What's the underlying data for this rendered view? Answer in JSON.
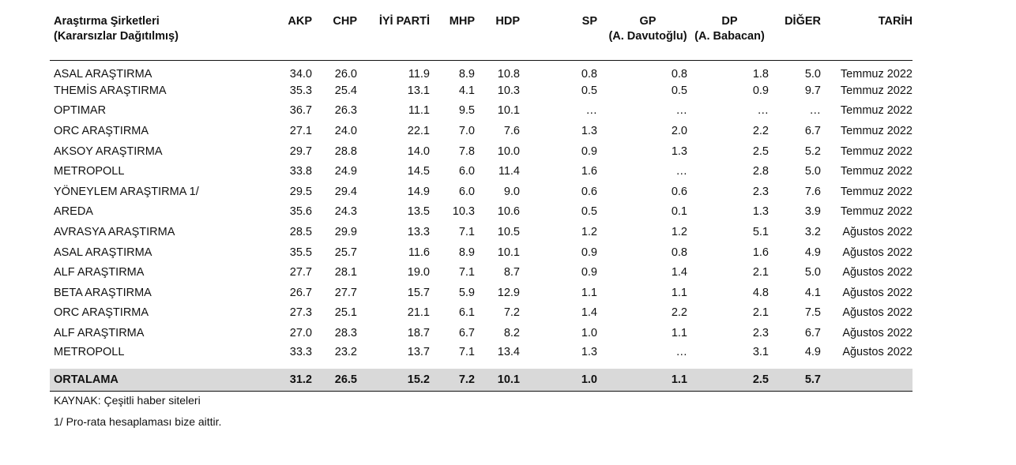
{
  "headers": {
    "company_line1": "Araştırma Şirketleri",
    "company_line2": "(Kararsızlar Dağıtılmış)",
    "akp": "AKP",
    "chp": "CHP",
    "iyi": "İYİ PARTİ",
    "mhp": "MHP",
    "hdp": "HDP",
    "sp": "SP",
    "gp_line1": "GP",
    "gp_line2": "(A. Davutoğlu)",
    "dp_line1": "DP",
    "dp_line2": "(A. Babacan)",
    "diger": "DİĞER",
    "tarih": "TARİH"
  },
  "rows": [
    [
      "ASAL ARAŞTIRMA",
      "34.0",
      "26.0",
      "11.9",
      "8.9",
      "10.8",
      "0.8",
      "0.8",
      "1.8",
      "5.0",
      "Temmuz 2022"
    ],
    [
      "THEMİS ARAŞTIRMA",
      "35.3",
      "25.4",
      "13.1",
      "4.1",
      "10.3",
      "0.5",
      "0.5",
      "0.9",
      "9.7",
      "Temmuz 2022"
    ],
    [
      "OPTIMAR",
      "36.7",
      "26.3",
      "11.1",
      "9.5",
      "10.1",
      "…",
      "…",
      "…",
      "…",
      "Temmuz 2022"
    ],
    [
      "ORC ARAŞTIRMA",
      "27.1",
      "24.0",
      "22.1",
      "7.0",
      "7.6",
      "1.3",
      "2.0",
      "2.2",
      "6.7",
      "Temmuz 2022"
    ],
    [
      "AKSOY ARAŞTIRMA",
      "29.7",
      "28.8",
      "14.0",
      "7.8",
      "10.0",
      "0.9",
      "1.3",
      "2.5",
      "5.2",
      "Temmuz 2022"
    ],
    [
      "METROPOLL",
      "33.8",
      "24.9",
      "14.5",
      "6.0",
      "11.4",
      "1.6",
      "…",
      "2.8",
      "5.0",
      "Temmuz 2022"
    ],
    [
      "YÖNEYLEM ARAŞTIRMA 1/",
      "29.5",
      "29.4",
      "14.9",
      "6.0",
      "9.0",
      "0.6",
      "0.6",
      "2.3",
      "7.6",
      "Temmuz 2022"
    ],
    [
      "AREDA",
      "35.6",
      "24.3",
      "13.5",
      "10.3",
      "10.6",
      "0.5",
      "0.1",
      "1.3",
      "3.9",
      "Temmuz 2022"
    ],
    [
      "AVRASYA ARAŞTIRMA",
      "28.5",
      "29.9",
      "13.3",
      "7.1",
      "10.5",
      "1.2",
      "1.2",
      "5.1",
      "3.2",
      "Ağustos 2022"
    ],
    [
      "ASAL ARAŞTIRMA",
      "35.5",
      "25.7",
      "11.6",
      "8.9",
      "10.1",
      "0.9",
      "0.8",
      "1.6",
      "4.9",
      "Ağustos 2022"
    ],
    [
      "ALF ARAŞTIRMA",
      "27.7",
      "28.1",
      "19.0",
      "7.1",
      "8.7",
      "0.9",
      "1.4",
      "2.1",
      "5.0",
      "Ağustos 2022"
    ],
    [
      "BETA ARAŞTIRMA",
      "26.7",
      "27.7",
      "15.7",
      "5.9",
      "12.9",
      "1.1",
      "1.1",
      "4.8",
      "4.1",
      "Ağustos 2022"
    ],
    [
      "ORC ARAŞTIRMA",
      "27.3",
      "25.1",
      "21.1",
      "6.1",
      "7.2",
      "1.4",
      "2.2",
      "2.1",
      "7.5",
      "Ağustos 2022"
    ],
    [
      "ALF ARAŞTIRMA",
      "27.0",
      "28.3",
      "18.7",
      "6.7",
      "8.2",
      "1.0",
      "1.1",
      "2.3",
      "6.7",
      "Ağustos 2022"
    ],
    [
      "METROPOLL",
      "33.3",
      "23.2",
      "13.7",
      "7.1",
      "13.4",
      "1.3",
      "…",
      "3.1",
      "4.9",
      "Ağustos 2022"
    ]
  ],
  "average": {
    "label": "ORTALAMA",
    "akp": "31.2",
    "chp": "26.5",
    "iyi": "15.2",
    "mhp": "7.2",
    "hdp": "10.1",
    "sp": "1.0",
    "gp": "1.1",
    "dp": "2.5",
    "diger": "5.7",
    "tarih": ""
  },
  "notes": {
    "source": "KAYNAK: Çeşitli haber siteleri",
    "footnote": "1/ Pro-rata hesaplaması bize aittir."
  }
}
